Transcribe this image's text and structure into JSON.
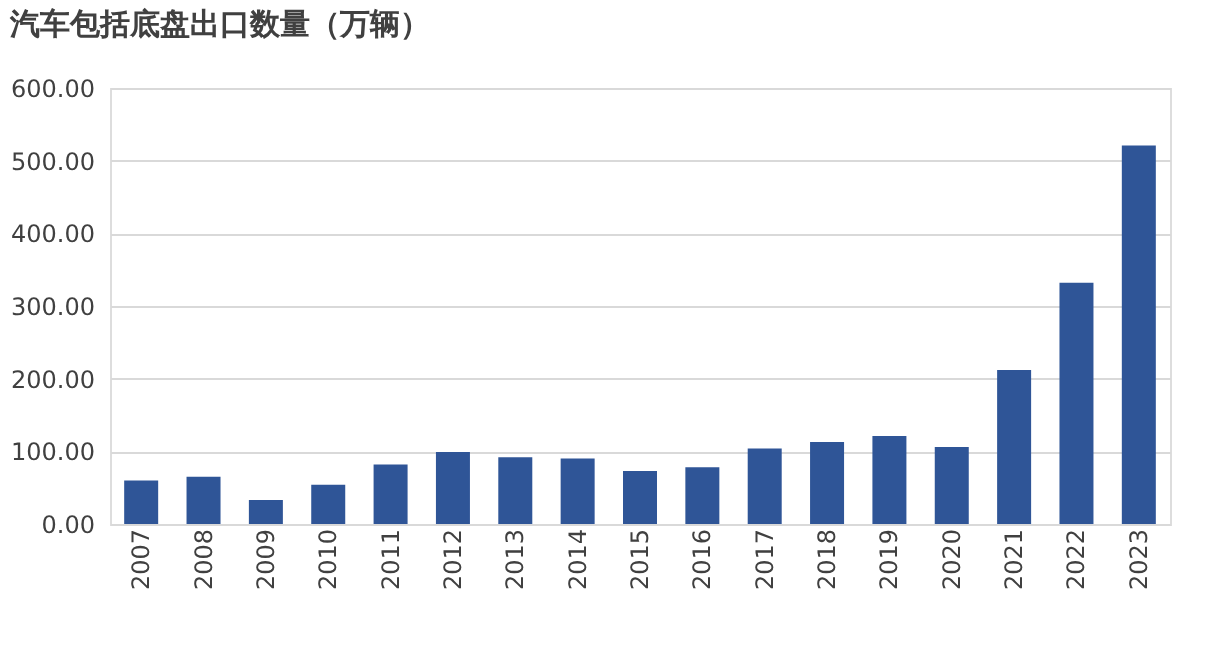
{
  "chart_data": {
    "type": "bar",
    "title": "汽车包括底盘出口数量（万辆）",
    "categories": [
      "2007",
      "2008",
      "2009",
      "2010",
      "2011",
      "2012",
      "2013",
      "2014",
      "2015",
      "2016",
      "2017",
      "2018",
      "2019",
      "2020",
      "2021",
      "2022",
      "2023"
    ],
    "values": [
      60,
      65,
      33,
      54,
      82,
      99,
      92,
      90,
      73,
      78,
      104,
      113,
      121,
      106,
      212,
      332,
      521
    ],
    "color": "#2f5597",
    "ylim": [
      0,
      600
    ],
    "yticks": [
      {
        "value": 0,
        "label": "0.00"
      },
      {
        "value": 100,
        "label": "100.00"
      },
      {
        "value": 200,
        "label": "200.00"
      },
      {
        "value": 300,
        "label": "300.00"
      },
      {
        "value": 400,
        "label": "400.00"
      },
      {
        "value": 500,
        "label": "500.00"
      },
      {
        "value": 600,
        "label": "600.00"
      }
    ],
    "grid": "y"
  }
}
